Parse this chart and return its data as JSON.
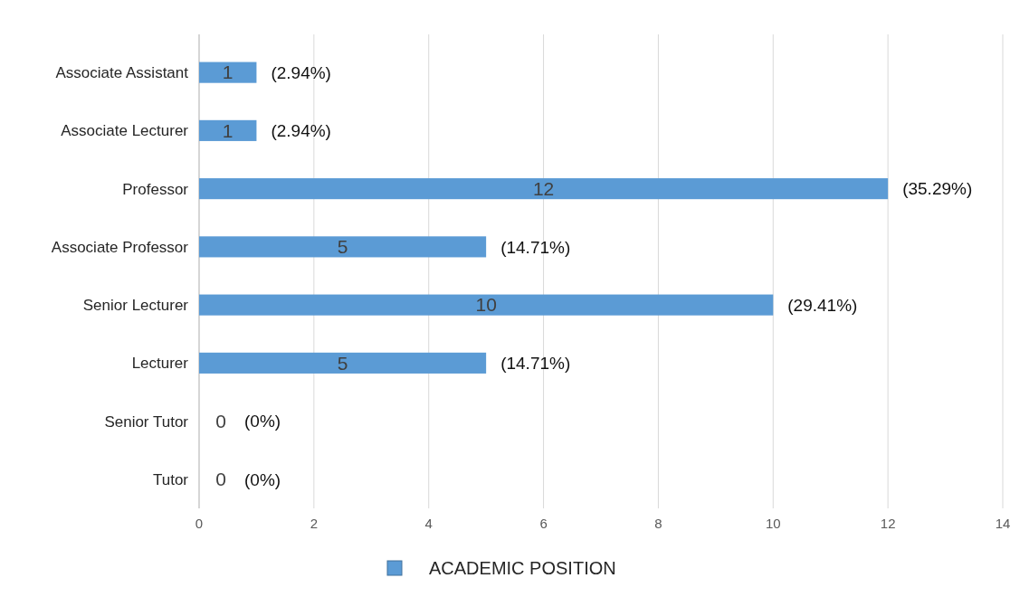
{
  "chart_data": {
    "type": "bar",
    "orientation": "horizontal",
    "categories": [
      "Associate Assistant",
      "Associate Lecturer",
      "Professor",
      "Associate Professor",
      "Senior Lecturer",
      "Lecturer",
      "Senior Tutor",
      "Tutor"
    ],
    "series": [
      {
        "name": "ACADEMIC POSITION",
        "color": "#5b9bd5",
        "values": [
          1,
          1,
          12,
          5,
          10,
          5,
          0,
          0
        ]
      }
    ],
    "annotations": [
      {
        "text": "(2.94%)",
        "x": 1,
        "y": "Associate Assistant"
      },
      {
        "text": "(2.94%)",
        "x": 1,
        "y": "Associate Lecturer"
      },
      {
        "text": "(35.29%)",
        "x": 12,
        "y": "Professor"
      },
      {
        "text": "(14.71%)",
        "x": 5,
        "y": "Associate Professor"
      },
      {
        "text": "(29.41%)",
        "x": 10,
        "y": "Senior Lecturer"
      },
      {
        "text": "(14.71%)",
        "x": 5,
        "y": "Lecturer"
      },
      {
        "text": "(0%)",
        "x": 0,
        "y": "Senior Tutor"
      },
      {
        "text": "(0%)",
        "x": 0,
        "y": "Tutor"
      }
    ],
    "xlim": [
      0,
      14
    ],
    "xticks": [
      0,
      2,
      4,
      6,
      8,
      10,
      12,
      14
    ],
    "grid": "x",
    "data_labels": true,
    "legend": "bottom"
  }
}
